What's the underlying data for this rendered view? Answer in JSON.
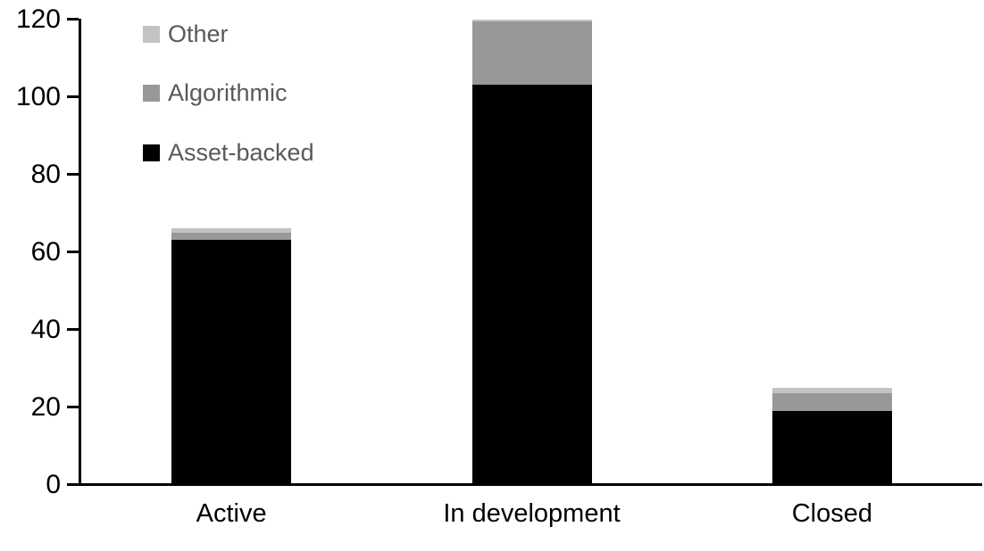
{
  "chart_data": {
    "type": "bar",
    "stacked": true,
    "title": "",
    "xlabel": "",
    "ylabel": "",
    "categories": [
      "Active",
      "In development",
      "Closed"
    ],
    "series": [
      {
        "name": "Asset-backed",
        "color": "#000000",
        "values": [
          63,
          103,
          19
        ]
      },
      {
        "name": "Algorithmic",
        "color": "#989898",
        "values": [
          2,
          16.5,
          4.5
        ]
      },
      {
        "name": "Other",
        "color": "#C3C3C3",
        "values": [
          1,
          0.5,
          1.5
        ]
      }
    ],
    "totals": [
      66,
      120,
      25
    ],
    "ylim": [
      0,
      120
    ],
    "yticks": [
      0,
      20,
      40,
      60,
      80,
      100,
      120
    ],
    "grid": false,
    "legend_position": "top-left",
    "legend_order": [
      "Other",
      "Algorithmic",
      "Asset-backed"
    ],
    "legend_text_color": "#595959",
    "axis_color": "#000000",
    "background_color": "#ffffff"
  }
}
